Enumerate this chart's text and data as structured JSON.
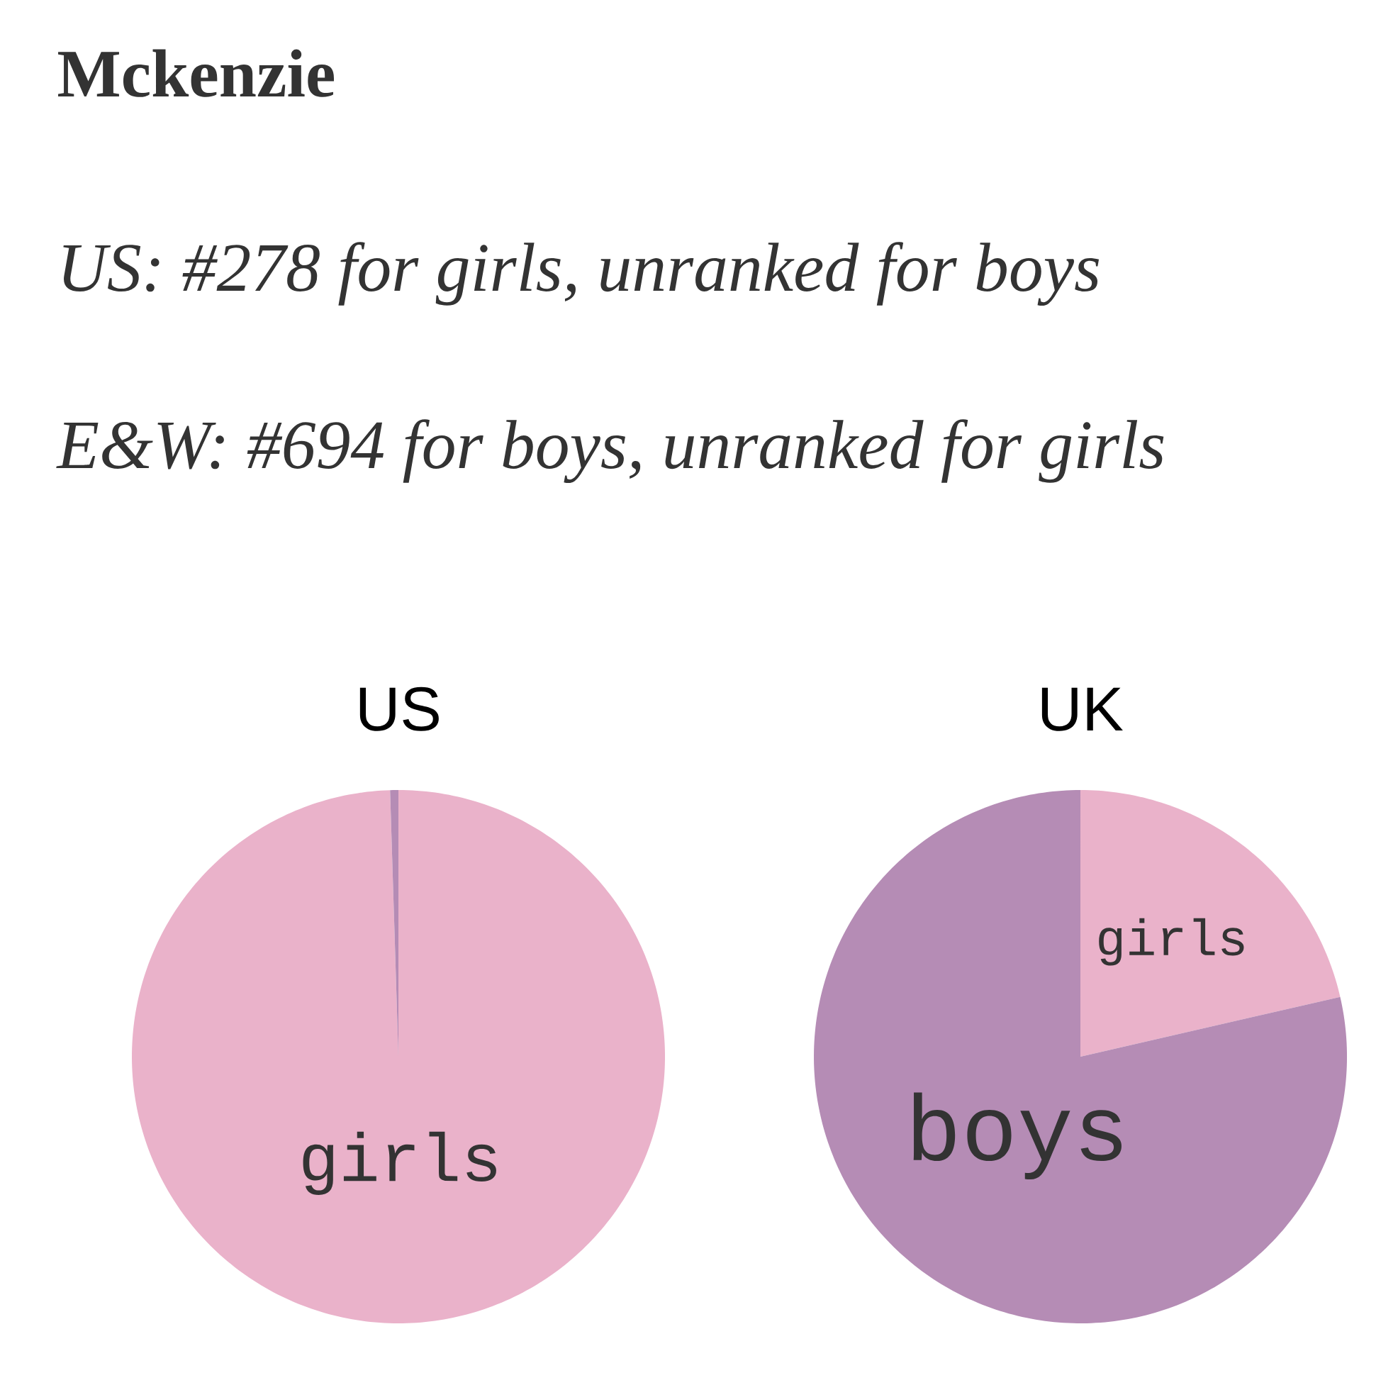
{
  "chart_data": [
    {
      "type": "other",
      "title": "Mckenzie",
      "annotations": [
        "US: #278 for girls, unranked for boys",
        "E&W: #694 for boys, unranked for girls"
      ]
    },
    {
      "type": "pie",
      "title": "US",
      "categories": [
        "girls",
        null
      ],
      "values": [
        99.5,
        0.5
      ],
      "colors": [
        "#eab2ca",
        "#b58cb5"
      ]
    },
    {
      "type": "pie",
      "title": "UK",
      "categories": [
        "girls",
        "boys"
      ],
      "values": [
        21.4,
        78.6
      ],
      "colors": [
        "#eab2ca",
        "#b58cb5"
      ]
    }
  ]
}
